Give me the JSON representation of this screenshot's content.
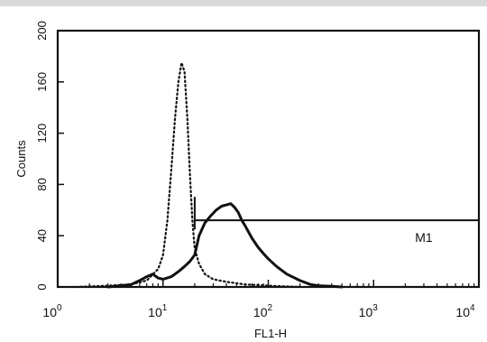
{
  "chart_data": {
    "type": "line",
    "title": "",
    "xlabel": "FL1-H",
    "ylabel": "Counts",
    "x_scale": "log",
    "xlim": [
      1,
      10000
    ],
    "ylim": [
      0,
      200
    ],
    "grid": false,
    "legend": "none",
    "x_ticks": [
      {
        "base": "10",
        "exp": "0"
      },
      {
        "base": "10",
        "exp": "1"
      },
      {
        "base": "10",
        "exp": "2"
      },
      {
        "base": "10",
        "exp": "3"
      },
      {
        "base": "10",
        "exp": "4"
      }
    ],
    "y_ticks": [
      "0",
      "40",
      "80",
      "120",
      "160",
      "200"
    ],
    "series": [
      {
        "style": "dotted",
        "x": [
          1.5,
          3,
          5,
          7,
          9,
          10,
          11,
          12,
          13,
          14,
          15,
          16,
          17,
          18,
          19,
          20,
          22,
          25,
          30,
          40,
          60,
          100,
          200
        ],
        "y": [
          0,
          1,
          2,
          5,
          14,
          25,
          52,
          92,
          132,
          160,
          175,
          168,
          132,
          88,
          52,
          30,
          18,
          10,
          6,
          4,
          2,
          1,
          0
        ]
      },
      {
        "style": "solid",
        "x": [
          3,
          4,
          5,
          6,
          7,
          8,
          9,
          10,
          12,
          14,
          16,
          18,
          20,
          22,
          25,
          28,
          32,
          36,
          40,
          44,
          48,
          52,
          56,
          60,
          70,
          80,
          90,
          100,
          120,
          150,
          200,
          250,
          300,
          400,
          500
        ],
        "y": [
          0,
          1,
          2,
          5,
          8,
          10,
          7,
          6,
          8,
          12,
          16,
          20,
          25,
          40,
          50,
          55,
          60,
          63,
          64,
          65,
          62,
          58,
          52,
          48,
          38,
          31,
          26,
          22,
          16,
          10,
          5,
          2,
          1,
          0.5,
          0
        ]
      }
    ],
    "annotations": [
      {
        "label": "M1",
        "x_start": 20,
        "x_end": 10000,
        "y": 52
      }
    ]
  },
  "colors": {
    "background": "#ffffff",
    "ink": "#111111",
    "top_band": "#d9d9d9"
  }
}
